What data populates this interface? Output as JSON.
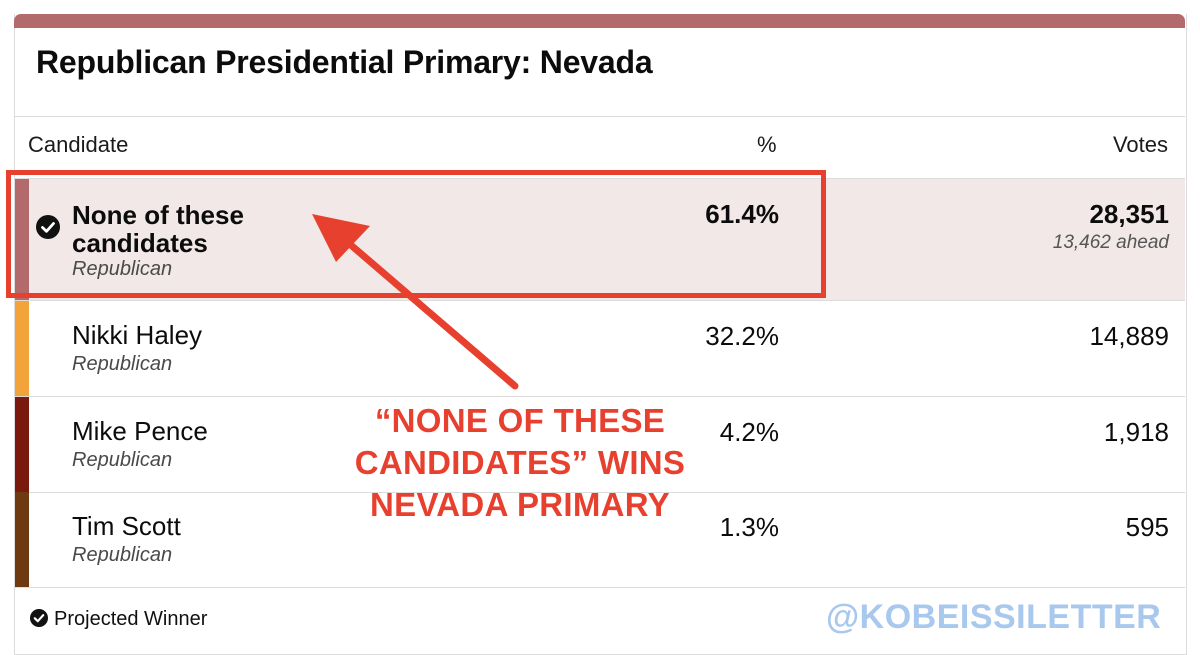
{
  "title": "Republican Presidential Primary: Nevada",
  "table": {
    "headers": {
      "candidate": "Candidate",
      "percent": "%",
      "votes": "Votes"
    },
    "rows": [
      {
        "name": "None of these candidates",
        "name_line1": "None of these",
        "name_line2": "candidates",
        "party": "Republican",
        "percent": "61.4%",
        "votes": "28,351",
        "ahead": "13,462 ahead",
        "winner": true,
        "color": "#b36a6a"
      },
      {
        "name": "Nikki Haley",
        "party": "Republican",
        "percent": "32.2%",
        "votes": "14,889",
        "color": "#f2a33a"
      },
      {
        "name": "Mike Pence",
        "party": "Republican",
        "percent": "4.2%",
        "votes": "1,918",
        "color": "#7a1a0e"
      },
      {
        "name": "Tim Scott",
        "party": "Republican",
        "percent": "1.3%",
        "votes": "595",
        "color": "#6e3a12"
      }
    ]
  },
  "footer": {
    "legend": "Projected Winner",
    "icon": "check-circle-icon"
  },
  "annotation": {
    "line1": "“NONE OF THESE",
    "line2": "CANDIDATES” WINS",
    "line3": "NEVADA PRIMARY",
    "color": "#e8402e"
  },
  "watermark": "@KOBEISSILETTER"
}
